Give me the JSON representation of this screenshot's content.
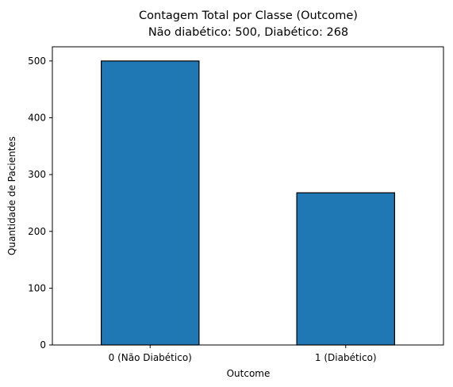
{
  "chart_data": {
    "type": "bar",
    "title": "Contagem Total por Classe (Outcome)",
    "subtitle": "Não diabético: 500, Diabético: 268",
    "xlabel": "Outcome",
    "ylabel": "Quantidade de Pacientes",
    "categories": [
      "0 (Não Diabético)",
      "1 (Diabético)"
    ],
    "values": [
      500,
      268
    ],
    "ylim": [
      0,
      525
    ],
    "yticks": [
      0,
      100,
      200,
      300,
      400,
      500
    ],
    "grid": false,
    "colors": {
      "bar": "#1f77b4",
      "edge": "#000000"
    }
  }
}
